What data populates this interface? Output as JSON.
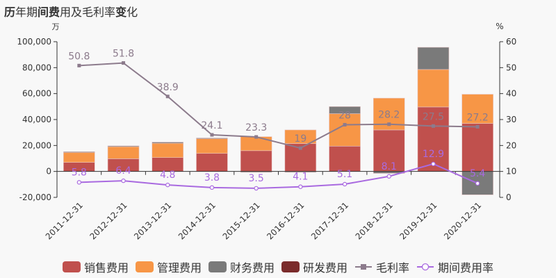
{
  "title": {
    "parts": [
      {
        "text": "历",
        "bold": true
      },
      {
        "text": "年期",
        "bold": false
      },
      {
        "text": "间费",
        "bold": true
      },
      {
        "text": "用及毛利率",
        "bold": false
      },
      {
        "text": "变",
        "bold": true
      },
      {
        "text": "化",
        "bold": false
      }
    ],
    "full": "历年期间费用及毛利率变化"
  },
  "left_unit": "万",
  "right_unit": "%",
  "legend": [
    {
      "label": "销售费用",
      "type": "bar",
      "color": "#c0504d"
    },
    {
      "label": "管理费用",
      "type": "bar",
      "color": "#f79646"
    },
    {
      "label": "财务费用",
      "type": "bar",
      "color": "#7a7a7a"
    },
    {
      "label": "研发费用",
      "type": "bar",
      "color": "#7b2c2c"
    },
    {
      "label": "毛利率",
      "type": "line-square",
      "color": "#8c7b8c"
    },
    {
      "label": "期间费用率",
      "type": "line-circle",
      "color": "#a96ae0"
    }
  ],
  "chart_data": {
    "type": "bar",
    "title": "历年期间费用及毛利率变化",
    "xlabel": "",
    "ylabel": "万",
    "y2label": "%",
    "ylim": [
      -20000,
      100000
    ],
    "y2lim": [
      0,
      60
    ],
    "yticks": [
      "100,000",
      "80,000",
      "60,000",
      "40,000",
      "20,000",
      "0",
      "-20,000"
    ],
    "y2ticks": [
      "60",
      "50",
      "40",
      "30",
      "20",
      "10",
      "0"
    ],
    "categories": [
      "2011-12-31",
      "2012-12-31",
      "2013-12-31",
      "2014-12-31",
      "2015-12-31",
      "2016-12-31",
      "2017-12-31",
      "2018-12-31",
      "2019-12-31",
      "2020-12-31"
    ],
    "series": [
      {
        "name": "销售费用",
        "type": "bar",
        "stack": "cost",
        "axis": "left",
        "color": "#c0504d",
        "values": [
          7000,
          9800,
          10700,
          13900,
          16000,
          21500,
          19500,
          32000,
          49700,
          37000
        ]
      },
      {
        "name": "管理费用",
        "type": "bar",
        "stack": "cost",
        "axis": "left",
        "color": "#f79646",
        "values": [
          8000,
          9300,
          11000,
          11300,
          10800,
          10500,
          25000,
          24500,
          28900,
          22500
        ]
      },
      {
        "name": "财务费用",
        "type": "bar",
        "stack": "cost",
        "axis": "left",
        "color": "#7a7a7a",
        "values": [
          200,
          600,
          900,
          600,
          -300,
          -400,
          5500,
          -1500,
          17100,
          -18000
        ]
      },
      {
        "name": "研发费用",
        "type": "bar",
        "stack": "cost",
        "axis": "left",
        "color": "#7b2c2c",
        "values": [
          0,
          0,
          0,
          0,
          0,
          0,
          0,
          0,
          0,
          0
        ]
      },
      {
        "name": "毛利率",
        "type": "line",
        "axis": "right",
        "marker": "square",
        "color": "#8c7b8c",
        "values": [
          50.8,
          51.8,
          38.9,
          24.1,
          23.3,
          19,
          28,
          28.2,
          27.5,
          27.2
        ]
      },
      {
        "name": "期间费用率",
        "type": "line",
        "axis": "right",
        "marker": "circle",
        "color": "#a96ae0",
        "values": [
          5.8,
          6.4,
          4.8,
          3.8,
          3.5,
          4.1,
          5.1,
          8.1,
          12.9,
          5.4
        ]
      }
    ],
    "labels": {
      "毛利率": [
        "50.8",
        "51.8",
        "38.9",
        "24.1",
        "23.3",
        "19",
        "28",
        "28.2",
        "27.5",
        "27.2"
      ],
      "期间费用率": [
        "5.8",
        "6.4",
        "4.8",
        "3.8",
        "3.5",
        "4.1",
        "5.1",
        "8.1",
        "12.9",
        "5.4"
      ]
    },
    "grid": false,
    "legend_position": "bottom"
  }
}
